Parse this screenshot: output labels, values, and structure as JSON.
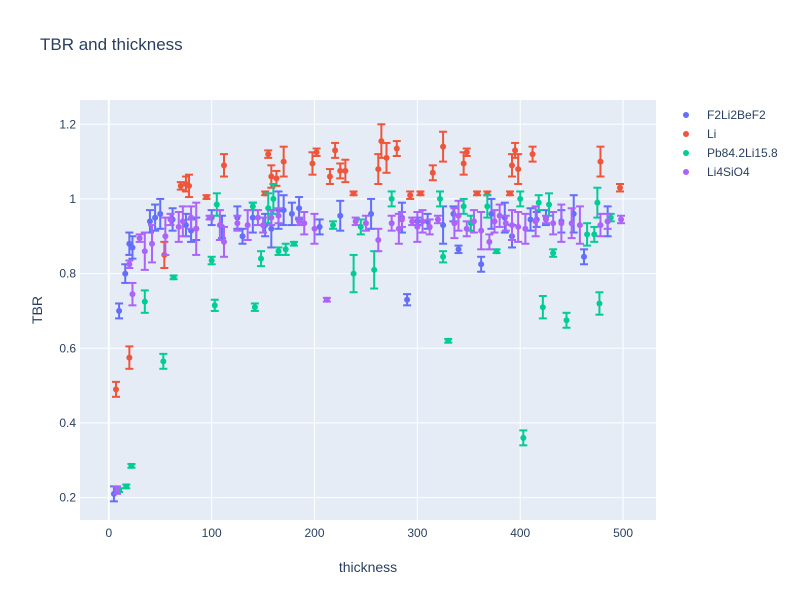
{
  "chart_data": {
    "type": "scatter",
    "title": "TBR and thickness",
    "xlabel": "thickness",
    "ylabel": "TBR",
    "xlim": [
      -28,
      532
    ],
    "ylim": [
      0.14,
      1.265
    ],
    "xticks": [
      0,
      100,
      200,
      300,
      400,
      500
    ],
    "yticks": [
      0.2,
      0.4,
      0.6,
      0.8,
      1.0,
      1.2
    ],
    "ytick_labels": [
      "0.2",
      "0.4",
      "0.6",
      "0.8",
      "1",
      "1.2"
    ],
    "grid": true,
    "legend_position": "top-right",
    "error_bars": true,
    "series": [
      {
        "name": "F2Li2BeF2",
        "color": "#636efa",
        "points": [
          [
            5,
            0.21,
            0.02
          ],
          [
            10,
            0.7,
            0.02
          ],
          [
            16,
            0.8,
            0.025
          ],
          [
            20,
            0.88,
            0.03
          ],
          [
            23,
            0.87,
            0.03
          ],
          [
            40,
            0.94,
            0.03
          ],
          [
            45,
            0.95,
            0.035
          ],
          [
            50,
            0.96,
            0.04
          ],
          [
            62,
            0.945,
            0.03
          ],
          [
            75,
            0.93,
            0.03
          ],
          [
            80,
            0.915,
            0.03
          ],
          [
            85,
            0.92,
            0.03
          ],
          [
            100,
            0.95,
            0.02
          ],
          [
            110,
            0.925,
            0.03
          ],
          [
            125,
            0.95,
            0.03
          ],
          [
            130,
            0.9,
            0.02
          ],
          [
            140,
            0.95,
            0.04
          ],
          [
            152,
            0.93,
            0.03
          ],
          [
            158,
            0.92,
            0.05
          ],
          [
            165,
            0.97,
            0.05
          ],
          [
            170,
            0.97,
            0.04
          ],
          [
            178,
            0.96,
            0.03
          ],
          [
            185,
            0.975,
            0.03
          ],
          [
            205,
            0.925,
            0.02
          ],
          [
            225,
            0.955,
            0.04
          ],
          [
            255,
            0.96,
            0.04
          ],
          [
            285,
            0.95,
            0.04
          ],
          [
            290,
            0.73,
            0.015
          ],
          [
            300,
            0.94,
            0.01
          ],
          [
            310,
            0.94,
            0.02
          ],
          [
            325,
            0.93,
            0.05
          ],
          [
            335,
            0.96,
            0.02
          ],
          [
            340,
            0.865,
            0.01
          ],
          [
            362,
            0.825,
            0.02
          ],
          [
            372,
            0.96,
            0.04
          ],
          [
            385,
            0.95,
            0.04
          ],
          [
            392,
            0.9,
            0.03
          ],
          [
            410,
            0.945,
            0.03
          ],
          [
            416,
            0.945,
            0.02
          ],
          [
            425,
            0.95,
            0.02
          ],
          [
            440,
            0.94,
            0.03
          ],
          [
            452,
            0.96,
            0.05
          ],
          [
            462,
            0.845,
            0.02
          ],
          [
            485,
            0.94,
            0.04
          ]
        ]
      },
      {
        "name": "Li",
        "color": "#ef553b",
        "points": [
          [
            7,
            0.49,
            0.02
          ],
          [
            20,
            0.575,
            0.03
          ],
          [
            54,
            0.85,
            0.035
          ],
          [
            70,
            1.035,
            0.01
          ],
          [
            75,
            1.04,
            0.02
          ],
          [
            78,
            1.035,
            0.03
          ],
          [
            95,
            1.005,
            0.005
          ],
          [
            112,
            1.09,
            0.03
          ],
          [
            152,
            1.015,
            0.005
          ],
          [
            155,
            1.12,
            0.01
          ],
          [
            158,
            1.06,
            0.03
          ],
          [
            163,
            1.055,
            0.02
          ],
          [
            170,
            1.1,
            0.04
          ],
          [
            198,
            1.095,
            0.03
          ],
          [
            202,
            1.125,
            0.01
          ],
          [
            215,
            1.06,
            0.02
          ],
          [
            220,
            1.13,
            0.02
          ],
          [
            225,
            1.075,
            0.02
          ],
          [
            230,
            1.075,
            0.03
          ],
          [
            238,
            1.015,
            0.005
          ],
          [
            262,
            1.08,
            0.04
          ],
          [
            265,
            1.155,
            0.045
          ],
          [
            270,
            1.11,
            0.04
          ],
          [
            280,
            1.135,
            0.02
          ],
          [
            293,
            1.01,
            0.01
          ],
          [
            303,
            1.015,
            0.005
          ],
          [
            315,
            1.07,
            0.02
          ],
          [
            325,
            1.14,
            0.04
          ],
          [
            345,
            1.095,
            0.03
          ],
          [
            348,
            1.125,
            0.01
          ],
          [
            358,
            1.015,
            0.005
          ],
          [
            368,
            1.015,
            0.005
          ],
          [
            390,
            1.015,
            0.005
          ],
          [
            392,
            1.09,
            0.03
          ],
          [
            395,
            1.13,
            0.02
          ],
          [
            398,
            1.08,
            0.04
          ],
          [
            412,
            1.12,
            0.02
          ],
          [
            478,
            1.1,
            0.04
          ],
          [
            497,
            1.03,
            0.01
          ]
        ]
      },
      {
        "name": "Pb84.2Li15.8",
        "color": "#00cc96",
        "points": [
          [
            10,
            0.22,
            0.005
          ],
          [
            17,
            0.23,
            0.005
          ],
          [
            22,
            0.285,
            0.005
          ],
          [
            35,
            0.725,
            0.03
          ],
          [
            53,
            0.565,
            0.02
          ],
          [
            63,
            0.79,
            0.005
          ],
          [
            100,
            0.835,
            0.01
          ],
          [
            103,
            0.715,
            0.015
          ],
          [
            105,
            0.985,
            0.03
          ],
          [
            140,
            0.98,
            0.01
          ],
          [
            142,
            0.71,
            0.01
          ],
          [
            148,
            0.84,
            0.02
          ],
          [
            155,
            0.975,
            0.04
          ],
          [
            160,
            1.0,
            0.04
          ],
          [
            165,
            0.86,
            0.01
          ],
          [
            172,
            0.865,
            0.015
          ],
          [
            180,
            0.88,
            0.005
          ],
          [
            218,
            0.93,
            0.01
          ],
          [
            238,
            0.8,
            0.05
          ],
          [
            245,
            0.925,
            0.02
          ],
          [
            258,
            0.81,
            0.05
          ],
          [
            275,
            1.0,
            0.02
          ],
          [
            322,
            1.0,
            0.02
          ],
          [
            325,
            0.845,
            0.015
          ],
          [
            330,
            0.62,
            0.005
          ],
          [
            345,
            0.98,
            0.02
          ],
          [
            352,
            0.935,
            0.02
          ],
          [
            368,
            0.98,
            0.03
          ],
          [
            377,
            0.86,
            0.005
          ],
          [
            400,
            1.0,
            0.02
          ],
          [
            403,
            0.36,
            0.02
          ],
          [
            418,
            0.99,
            0.02
          ],
          [
            422,
            0.71,
            0.03
          ],
          [
            428,
            0.985,
            0.03
          ],
          [
            432,
            0.855,
            0.01
          ],
          [
            445,
            0.675,
            0.02
          ],
          [
            465,
            0.905,
            0.03
          ],
          [
            472,
            0.905,
            0.02
          ],
          [
            475,
            0.99,
            0.04
          ],
          [
            477,
            0.72,
            0.03
          ],
          [
            488,
            0.95,
            0.01
          ]
        ]
      },
      {
        "name": "Li4SiO4",
        "color": "#ab63fa",
        "points": [
          [
            8,
            0.22,
            0.01
          ],
          [
            20,
            0.825,
            0.01
          ],
          [
            23,
            0.745,
            0.03
          ],
          [
            30,
            0.895,
            0.01
          ],
          [
            35,
            0.86,
            0.05
          ],
          [
            42,
            0.88,
            0.05
          ],
          [
            55,
            0.9,
            0.05
          ],
          [
            60,
            0.945,
            0.015
          ],
          [
            68,
            0.925,
            0.04
          ],
          [
            72,
            0.94,
            0.04
          ],
          [
            80,
            0.95,
            0.03
          ],
          [
            85,
            0.92,
            0.07
          ],
          [
            98,
            0.95,
            0.005
          ],
          [
            108,
            0.93,
            0.04
          ],
          [
            112,
            0.885,
            0.04
          ],
          [
            125,
            0.935,
            0.02
          ],
          [
            135,
            0.93,
            0.04
          ],
          [
            145,
            0.95,
            0.02
          ],
          [
            150,
            0.93,
            0.02
          ],
          [
            158,
            0.95,
            0.02
          ],
          [
            165,
            0.955,
            0.02
          ],
          [
            185,
            0.94,
            0.01
          ],
          [
            190,
            0.935,
            0.03
          ],
          [
            200,
            0.92,
            0.04
          ],
          [
            212,
            0.73,
            0.005
          ],
          [
            240,
            0.94,
            0.01
          ],
          [
            250,
            0.935,
            0.02
          ],
          [
            262,
            0.89,
            0.03
          ],
          [
            275,
            0.935,
            0.02
          ],
          [
            282,
            0.92,
            0.04
          ],
          [
            285,
            0.945,
            0.02
          ],
          [
            295,
            0.94,
            0.01
          ],
          [
            300,
            0.925,
            0.04
          ],
          [
            305,
            0.94,
            0.03
          ],
          [
            312,
            0.925,
            0.02
          ],
          [
            320,
            0.945,
            0.01
          ],
          [
            336,
            0.935,
            0.04
          ],
          [
            340,
            0.955,
            0.04
          ],
          [
            348,
            0.92,
            0.02
          ],
          [
            355,
            0.94,
            0.03
          ],
          [
            362,
            0.915,
            0.05
          ],
          [
            370,
            0.885,
            0.02
          ],
          [
            375,
            0.94,
            0.03
          ],
          [
            380,
            0.955,
            0.03
          ],
          [
            386,
            0.935,
            0.02
          ],
          [
            392,
            0.93,
            0.04
          ],
          [
            398,
            0.925,
            0.04
          ],
          [
            405,
            0.92,
            0.04
          ],
          [
            415,
            0.94,
            0.04
          ],
          [
            425,
            0.945,
            0.01
          ],
          [
            432,
            0.935,
            0.03
          ],
          [
            440,
            0.935,
            0.05
          ],
          [
            450,
            0.935,
            0.04
          ],
          [
            458,
            0.93,
            0.05
          ],
          [
            478,
            0.93,
            0.03
          ],
          [
            485,
            0.94,
            0.02
          ],
          [
            498,
            0.945,
            0.01
          ]
        ]
      }
    ]
  }
}
